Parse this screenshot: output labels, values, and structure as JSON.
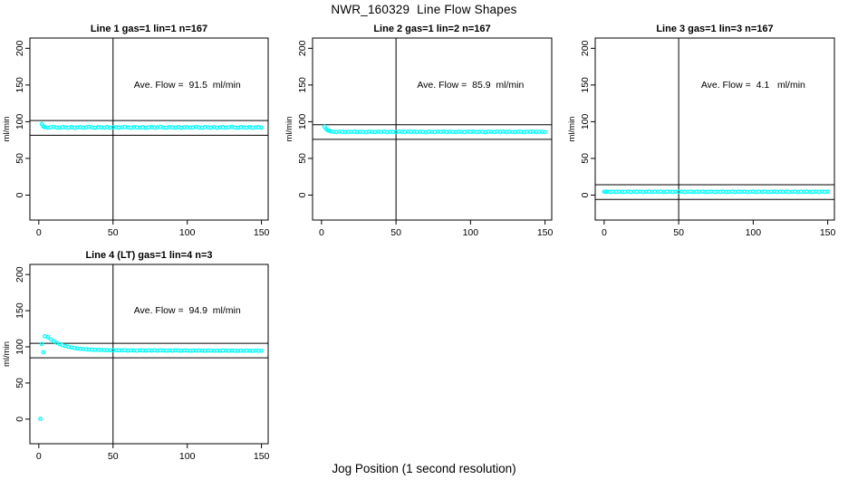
{
  "figure": {
    "title": "NWR_160329  Line Flow Shapes",
    "xlabel": "Jog Position (1 second resolution)",
    "background_color": "#ffffff",
    "line_color": "#000000",
    "point_color": "#00ffff"
  },
  "chart_data": [
    {
      "type": "scatter",
      "title": "Line 1 gas=1 lin=1 n=167",
      "ylabel": "ml/min",
      "ave_flow_ml_min": 91.5,
      "n": 167,
      "annotation": {
        "text": "Ave. Flow =  91.5  ml/min",
        "x": 100,
        "y": 150
      },
      "hlines": [
        101.5,
        81.5
      ],
      "vline": 50,
      "xticks": [
        0,
        50,
        100,
        150
      ],
      "yticks": [
        0,
        50,
        100,
        150,
        200
      ],
      "xlim": [
        -6,
        154.5
      ],
      "ylim": [
        -34,
        214
      ],
      "grid": false,
      "series": {
        "head": [
          [
            2,
            96.8
          ],
          [
            3,
            93.4
          ]
        ],
        "x0": 4,
        "dx": 2,
        "y": [
          92.5,
          91.8,
          92.3,
          92.8,
          92.0,
          91.7,
          92.6,
          92.2,
          91.9,
          92.7,
          91.6,
          92.4,
          92.5,
          91.8,
          92.3,
          92.9,
          92.0,
          91.7,
          92.6,
          92.2,
          91.9,
          92.7,
          91.6,
          92.4,
          92.5,
          91.8,
          92.3,
          92.9,
          92.0,
          91.7,
          92.6,
          92.2,
          91.9,
          92.7,
          91.6,
          92.4,
          92.5,
          91.8,
          92.3,
          92.9,
          92.0,
          91.7,
          92.6,
          92.2,
          91.9,
          92.7,
          91.6,
          92.4,
          92.5,
          91.8,
          92.3,
          92.9,
          92.0,
          91.7,
          92.6,
          92.2,
          91.9,
          92.7,
          91.6,
          92.4,
          92.5,
          91.8,
          92.3,
          92.9,
          92.0,
          91.7,
          92.6,
          92.2,
          91.9,
          92.7,
          91.6,
          92.4,
          92.5,
          91.8
        ]
      }
    },
    {
      "type": "scatter",
      "title": "Line 2 gas=1 lin=2 n=167",
      "ylabel": "ml/min",
      "ave_flow_ml_min": 85.9,
      "n": 167,
      "annotation": {
        "text": "Ave. Flow =  85.9  ml/min",
        "x": 100,
        "y": 150
      },
      "hlines": [
        95.9,
        75.9
      ],
      "vline": 50,
      "xticks": [
        0,
        50,
        100,
        150
      ],
      "yticks": [
        0,
        50,
        100,
        150,
        200
      ],
      "xlim": [
        -6,
        154.5
      ],
      "ylim": [
        -34,
        214
      ],
      "grid": false,
      "series": {
        "head": [
          [
            2,
            93.2
          ],
          [
            3,
            90.3
          ],
          [
            4,
            88.7
          ],
          [
            5,
            87.8
          ]
        ],
        "x0": 6,
        "dx": 2,
        "y": [
          86.9,
          86.2,
          85.9,
          86.5,
          86.1,
          85.8,
          86.4,
          86.0,
          86.6,
          85.9,
          86.3,
          86.1,
          85.7,
          86.5,
          86.2,
          85.9,
          86.4,
          86.0,
          86.6,
          85.8,
          86.3,
          86.1,
          85.9,
          86.5,
          86.2,
          85.8,
          86.4,
          86.0,
          86.6,
          85.9,
          86.3,
          86.1,
          85.7,
          86.5,
          86.2,
          85.9,
          86.4,
          86.0,
          86.6,
          85.8,
          86.3,
          86.1,
          85.9,
          86.5,
          86.2,
          85.8,
          86.4,
          86.0,
          86.6,
          85.9,
          86.3,
          86.1,
          85.7,
          86.5,
          86.2,
          85.9,
          86.4,
          86.0,
          86.6,
          85.8,
          86.3,
          86.1,
          85.9,
          86.5,
          86.2,
          85.8,
          86.4,
          86.0,
          86.6,
          85.9,
          86.3,
          86.1,
          85.9
        ]
      }
    },
    {
      "type": "scatter",
      "title": "Line 3 gas=1 lin=3 n=167",
      "ylabel": "ml/min",
      "ave_flow_ml_min": 4.1,
      "n": 167,
      "annotation": {
        "text": "Ave. Flow =  4.1   ml/min",
        "x": 100,
        "y": 150
      },
      "hlines": [
        14.1,
        -5.9
      ],
      "vline": 50,
      "xticks": [
        0,
        50,
        100,
        150
      ],
      "yticks": [
        0,
        50,
        100,
        150,
        200
      ],
      "xlim": [
        -6,
        154.5
      ],
      "ylim": [
        -34,
        214
      ],
      "grid": false,
      "series": {
        "head": [
          [
            0,
            4.6
          ],
          [
            1,
            4.4
          ]
        ],
        "x0": 2,
        "dx": 2,
        "y": [
          4.7,
          4.3,
          4.6,
          4.4,
          4.8,
          4.2,
          4.5,
          4.7,
          4.3,
          4.6,
          4.4,
          4.8,
          4.2,
          4.5,
          4.7,
          4.3,
          4.6,
          4.4,
          4.8,
          4.2,
          4.5,
          4.7,
          4.3,
          4.6,
          4.4,
          4.8,
          4.2,
          4.5,
          4.7,
          4.3,
          4.6,
          4.4,
          4.8,
          4.2,
          4.5,
          4.7,
          4.3,
          4.6,
          4.4,
          4.8,
          4.2,
          4.5,
          4.7,
          4.3,
          4.6,
          4.4,
          4.8,
          4.2,
          4.5,
          4.7,
          4.3,
          4.6,
          4.4,
          4.8,
          4.2,
          4.5,
          4.7,
          4.3,
          4.6,
          4.4,
          4.8,
          4.2,
          4.5,
          4.7,
          4.3,
          4.6,
          4.4,
          4.8,
          4.2,
          4.5,
          4.7,
          4.3,
          4.6,
          4.4,
          4.8
        ]
      }
    },
    {
      "type": "scatter",
      "title": "Line 4 (LT) gas=1 lin=4 n=3",
      "ylabel": "ml/min",
      "ave_flow_ml_min": 94.9,
      "n": 3,
      "annotation": {
        "text": "Ave. Flow =  94.9  ml/min",
        "x": 100,
        "y": 150
      },
      "hlines": [
        104.9,
        84.9
      ],
      "vline": 50,
      "xticks": [
        0,
        50,
        100,
        150
      ],
      "yticks": [
        0,
        50,
        100,
        150,
        200
      ],
      "xlim": [
        -6,
        154.5
      ],
      "ylim": [
        -34,
        214
      ],
      "grid": false,
      "series": {
        "head": [
          [
            1,
            0.5
          ],
          [
            2,
            104.0
          ],
          [
            3,
            92.5
          ]
        ],
        "x0": 4,
        "dx": 2,
        "y": [
          114.5,
          113.5,
          110.5,
          107.8,
          105.6,
          103.8,
          102.3,
          101.0,
          100.0,
          99.1,
          98.4,
          97.8,
          97.3,
          96.9,
          96.6,
          96.3,
          96.1,
          95.9,
          95.7,
          95.6,
          95.5,
          95.4,
          95.3,
          95.3,
          95.2,
          95.2,
          95.1,
          95.3,
          94.9,
          95.2,
          95.0,
          94.8,
          95.2,
          95.0,
          94.7,
          95.1,
          94.9,
          95.2,
          94.8,
          95.1,
          94.9,
          94.7,
          95.0,
          94.8,
          95.1,
          94.9,
          94.6,
          95.0,
          94.8,
          94.6,
          94.9,
          94.7,
          95.0,
          94.8,
          94.5,
          94.9,
          94.7,
          94.6,
          94.8,
          94.6,
          94.9,
          94.7,
          94.5,
          94.8,
          94.6,
          94.4,
          94.7,
          94.5,
          94.8,
          94.6,
          94.4,
          94.7,
          94.5,
          94.6
        ]
      }
    }
  ]
}
